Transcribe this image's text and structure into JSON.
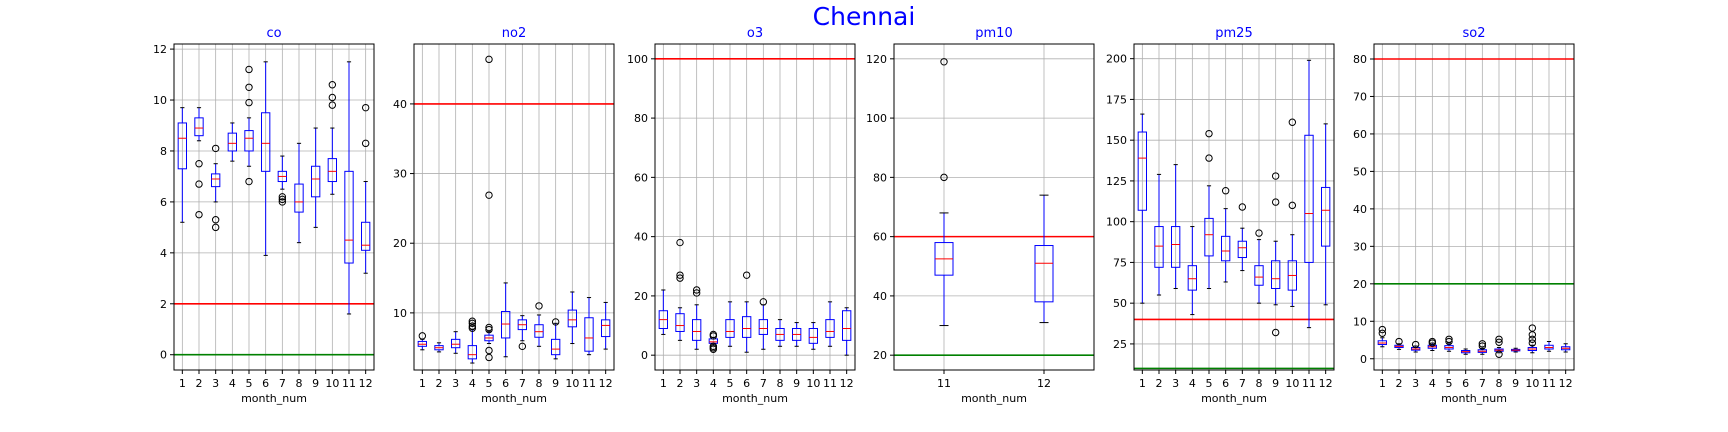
{
  "figure": {
    "title": "Chennai"
  },
  "chart_data": [
    {
      "type": "box",
      "title": "co",
      "xlabel": "month_num",
      "categories": [
        "1",
        "2",
        "3",
        "4",
        "5",
        "6",
        "7",
        "8",
        "9",
        "10",
        "11",
        "12"
      ],
      "ylim": [
        -0.6,
        12.2
      ],
      "yticks": [
        0,
        2,
        4,
        6,
        8,
        10,
        12
      ],
      "grid": true,
      "hlines": [
        {
          "y": 2,
          "color": "#ff0000"
        },
        {
          "y": 0,
          "color": "#008000"
        }
      ],
      "boxes": [
        {
          "whislo": 5.2,
          "q1": 7.3,
          "med": 8.5,
          "q3": 9.1,
          "whishi": 9.7,
          "fliers": []
        },
        {
          "whislo": 8.4,
          "q1": 8.6,
          "med": 8.9,
          "q3": 9.3,
          "whishi": 9.7,
          "fliers": [
            7.5,
            6.7,
            5.5
          ]
        },
        {
          "whislo": 6.0,
          "q1": 6.6,
          "med": 6.9,
          "q3": 7.1,
          "whishi": 7.5,
          "fliers": [
            8.1,
            5.3,
            5.0
          ]
        },
        {
          "whislo": 7.6,
          "q1": 8.0,
          "med": 8.3,
          "q3": 8.7,
          "whishi": 9.1,
          "fliers": []
        },
        {
          "whislo": 7.4,
          "q1": 8.0,
          "med": 8.5,
          "q3": 8.8,
          "whishi": 9.3,
          "fliers": [
            11.2,
            10.5,
            9.9,
            6.8
          ]
        },
        {
          "whislo": 3.9,
          "q1": 7.2,
          "med": 8.3,
          "q3": 9.5,
          "whishi": 11.5,
          "fliers": []
        },
        {
          "whislo": 6.5,
          "q1": 6.8,
          "med": 7.0,
          "q3": 7.2,
          "whishi": 7.8,
          "fliers": [
            6.2,
            6.1,
            6.0
          ]
        },
        {
          "whislo": 4.4,
          "q1": 5.6,
          "med": 6.0,
          "q3": 6.7,
          "whishi": 8.3,
          "fliers": []
        },
        {
          "whislo": 5.0,
          "q1": 6.2,
          "med": 6.9,
          "q3": 7.4,
          "whishi": 8.9,
          "fliers": []
        },
        {
          "whislo": 6.3,
          "q1": 6.8,
          "med": 7.2,
          "q3": 7.7,
          "whishi": 8.9,
          "fliers": [
            10.6,
            10.1,
            9.8
          ]
        },
        {
          "whislo": 1.6,
          "q1": 3.6,
          "med": 4.5,
          "q3": 7.2,
          "whishi": 11.5,
          "fliers": []
        },
        {
          "whislo": 3.2,
          "q1": 4.1,
          "med": 4.3,
          "q3": 5.2,
          "whishi": 6.8,
          "fliers": [
            9.7,
            8.3
          ]
        }
      ]
    },
    {
      "type": "box",
      "title": "no2",
      "xlabel": "month_num",
      "categories": [
        "1",
        "2",
        "3",
        "4",
        "5",
        "6",
        "7",
        "8",
        "9",
        "10",
        "11",
        "12"
      ],
      "ylim": [
        1.8,
        48.6
      ],
      "yticks": [
        10,
        20,
        30,
        40
      ],
      "grid": true,
      "hlines": [
        {
          "y": 40,
          "color": "#ff0000"
        }
      ],
      "boxes": [
        {
          "whislo": 4.7,
          "q1": 5.2,
          "med": 5.5,
          "q3": 5.9,
          "whishi": 6.2,
          "fliers": [
            6.7
          ]
        },
        {
          "whislo": 4.4,
          "q1": 4.7,
          "med": 5.0,
          "q3": 5.3,
          "whishi": 5.7,
          "fliers": []
        },
        {
          "whislo": 4.2,
          "q1": 5.0,
          "med": 5.5,
          "q3": 6.2,
          "whishi": 7.3,
          "fliers": []
        },
        {
          "whislo": 2.8,
          "q1": 3.4,
          "med": 4.0,
          "q3": 5.3,
          "whishi": 7.6,
          "fliers": [
            8.1,
            8.5,
            8.8,
            7.8
          ]
        },
        {
          "whislo": 5.6,
          "q1": 6.0,
          "med": 6.4,
          "q3": 6.8,
          "whishi": 7.3,
          "fliers": [
            46.4,
            26.9,
            7.9,
            7.6,
            4.6,
            3.6
          ]
        },
        {
          "whislo": 3.7,
          "q1": 6.4,
          "med": 8.4,
          "q3": 10.2,
          "whishi": 14.3,
          "fliers": []
        },
        {
          "whislo": 6.0,
          "q1": 7.6,
          "med": 8.3,
          "q3": 9.0,
          "whishi": 9.6,
          "fliers": [
            5.2
          ]
        },
        {
          "whislo": 5.2,
          "q1": 6.5,
          "med": 7.3,
          "q3": 8.3,
          "whishi": 9.7,
          "fliers": [
            11.0
          ]
        },
        {
          "whislo": 3.4,
          "q1": 4.0,
          "med": 4.8,
          "q3": 6.2,
          "whishi": 8.5,
          "fliers": [
            8.7
          ]
        },
        {
          "whislo": 5.6,
          "q1": 8.0,
          "med": 9.0,
          "q3": 10.4,
          "whishi": 13.0,
          "fliers": []
        },
        {
          "whislo": 4.0,
          "q1": 4.5,
          "med": 6.4,
          "q3": 9.3,
          "whishi": 12.2,
          "fliers": []
        },
        {
          "whislo": 4.8,
          "q1": 6.6,
          "med": 8.2,
          "q3": 9.0,
          "whishi": 11.5,
          "fliers": []
        }
      ]
    },
    {
      "type": "box",
      "title": "o3",
      "xlabel": "month_num",
      "categories": [
        "1",
        "2",
        "3",
        "4",
        "5",
        "6",
        "7",
        "8",
        "9",
        "10",
        "11",
        "12"
      ],
      "ylim": [
        -5,
        105
      ],
      "yticks": [
        0,
        20,
        40,
        60,
        80,
        100
      ],
      "grid": true,
      "hlines": [
        {
          "y": 100,
          "color": "#ff0000"
        }
      ],
      "boxes": [
        {
          "whislo": 7.0,
          "q1": 9.0,
          "med": 12.0,
          "q3": 15.0,
          "whishi": 22.0,
          "fliers": []
        },
        {
          "whislo": 5.0,
          "q1": 8.0,
          "med": 10.0,
          "q3": 14.0,
          "whishi": 16.0,
          "fliers": [
            38.0,
            27.0,
            26.0
          ]
        },
        {
          "whislo": 2.0,
          "q1": 5.0,
          "med": 8.0,
          "q3": 12.0,
          "whishi": 17.0,
          "fliers": [
            22.0,
            21.0
          ]
        },
        {
          "whislo": 3.5,
          "q1": 4.0,
          "med": 4.5,
          "q3": 5.5,
          "whishi": 6.0,
          "fliers": [
            7.0,
            6.5,
            3.0,
            2.5,
            2.0
          ]
        },
        {
          "whislo": 3.0,
          "q1": 6.0,
          "med": 8.0,
          "q3": 12.0,
          "whishi": 18.0,
          "fliers": []
        },
        {
          "whislo": 1.0,
          "q1": 6.0,
          "med": 9.0,
          "q3": 13.0,
          "whishi": 18.0,
          "fliers": [
            27.0
          ]
        },
        {
          "whislo": 2.0,
          "q1": 7.0,
          "med": 9.0,
          "q3": 12.0,
          "whishi": 17.0,
          "fliers": [
            18.0
          ]
        },
        {
          "whislo": 3.0,
          "q1": 5.0,
          "med": 7.0,
          "q3": 9.0,
          "whishi": 12.0,
          "fliers": []
        },
        {
          "whislo": 3.0,
          "q1": 5.0,
          "med": 7.0,
          "q3": 9.0,
          "whishi": 11.0,
          "fliers": []
        },
        {
          "whislo": 2.0,
          "q1": 4.0,
          "med": 6.0,
          "q3": 9.0,
          "whishi": 11.0,
          "fliers": []
        },
        {
          "whislo": 3.0,
          "q1": 6.0,
          "med": 8.0,
          "q3": 12.0,
          "whishi": 18.0,
          "fliers": []
        },
        {
          "whislo": 0.0,
          "q1": 5.0,
          "med": 9.0,
          "q3": 15.0,
          "whishi": 16.0,
          "fliers": []
        }
      ]
    },
    {
      "type": "box",
      "title": "pm10",
      "xlabel": "month_num",
      "categories": [
        "11",
        "12"
      ],
      "ylim": [
        15,
        125
      ],
      "yticks": [
        20,
        40,
        60,
        80,
        100,
        120
      ],
      "grid": true,
      "hlines": [
        {
          "y": 60,
          "color": "#ff0000"
        },
        {
          "y": 20,
          "color": "#008000"
        }
      ],
      "boxes": [
        {
          "whislo": 30.0,
          "q1": 47.0,
          "med": 52.5,
          "q3": 58.0,
          "whishi": 68.0,
          "fliers": [
            119.0,
            80.0
          ]
        },
        {
          "whislo": 31.0,
          "q1": 38.0,
          "med": 51.0,
          "q3": 57.0,
          "whishi": 74.0,
          "fliers": []
        }
      ]
    },
    {
      "type": "box",
      "title": "pm25",
      "xlabel": "month_num",
      "categories": [
        "1",
        "2",
        "3",
        "4",
        "5",
        "6",
        "7",
        "8",
        "9",
        "10",
        "11",
        "12"
      ],
      "ylim": [
        9,
        209
      ],
      "yticks": [
        25,
        50,
        75,
        100,
        125,
        150,
        175,
        200
      ],
      "grid": true,
      "hlines": [
        {
          "y": 40,
          "color": "#ff0000"
        },
        {
          "y": 10,
          "color": "#008000"
        }
      ],
      "boxes": [
        {
          "whislo": 50.0,
          "q1": 107.0,
          "med": 139.0,
          "q3": 155.0,
          "whishi": 166.0,
          "fliers": []
        },
        {
          "whislo": 55.0,
          "q1": 72.0,
          "med": 85.0,
          "q3": 97.0,
          "whishi": 129.0,
          "fliers": []
        },
        {
          "whislo": 59.0,
          "q1": 72.0,
          "med": 86.0,
          "q3": 97.0,
          "whishi": 135.0,
          "fliers": []
        },
        {
          "whislo": 43.0,
          "q1": 58.0,
          "med": 65.0,
          "q3": 73.0,
          "whishi": 97.0,
          "fliers": []
        },
        {
          "whislo": 59.0,
          "q1": 79.0,
          "med": 92.0,
          "q3": 102.0,
          "whishi": 122.0,
          "fliers": [
            154.0,
            139.0
          ]
        },
        {
          "whislo": 63.0,
          "q1": 76.0,
          "med": 82.0,
          "q3": 91.0,
          "whishi": 108.0,
          "fliers": [
            119.0
          ]
        },
        {
          "whislo": 70.0,
          "q1": 78.0,
          "med": 84.0,
          "q3": 88.0,
          "whishi": 96.0,
          "fliers": [
            109.0
          ]
        },
        {
          "whislo": 50.0,
          "q1": 61.0,
          "med": 66.0,
          "q3": 73.0,
          "whishi": 89.0,
          "fliers": [
            93.0
          ]
        },
        {
          "whislo": 49.0,
          "q1": 59.0,
          "med": 65.0,
          "q3": 76.0,
          "whishi": 88.0,
          "fliers": [
            128.0,
            112.0,
            32.0
          ]
        },
        {
          "whislo": 48.0,
          "q1": 58.0,
          "med": 67.0,
          "q3": 76.0,
          "whishi": 92.0,
          "fliers": [
            161.0,
            110.0
          ]
        },
        {
          "whislo": 35.0,
          "q1": 75.0,
          "med": 105.0,
          "q3": 153.0,
          "whishi": 199.0,
          "fliers": []
        },
        {
          "whislo": 49.0,
          "q1": 85.0,
          "med": 107.0,
          "q3": 121.0,
          "whishi": 160.0,
          "fliers": []
        }
      ]
    },
    {
      "type": "box",
      "title": "so2",
      "xlabel": "month_num",
      "categories": [
        "1",
        "2",
        "3",
        "4",
        "5",
        "6",
        "7",
        "8",
        "9",
        "10",
        "11",
        "12"
      ],
      "ylim": [
        -3,
        84
      ],
      "yticks": [
        0,
        10,
        20,
        30,
        40,
        50,
        60,
        70,
        80
      ],
      "grid": true,
      "hlines": [
        {
          "y": 80,
          "color": "#ff0000"
        },
        {
          "y": 20,
          "color": "#008000"
        }
      ],
      "boxes": [
        {
          "whislo": 3.2,
          "q1": 3.8,
          "med": 4.2,
          "q3": 4.8,
          "whishi": 5.6,
          "fliers": [
            7.8,
            6.8
          ]
        },
        {
          "whislo": 2.5,
          "q1": 3.0,
          "med": 3.3,
          "q3": 3.6,
          "whishi": 4.0,
          "fliers": [
            4.6
          ]
        },
        {
          "whislo": 1.8,
          "q1": 2.3,
          "med": 2.6,
          "q3": 3.0,
          "whishi": 3.4,
          "fliers": [
            3.8
          ]
        },
        {
          "whislo": 2.2,
          "q1": 2.8,
          "med": 3.2,
          "q3": 3.6,
          "whishi": 4.2,
          "fliers": [
            4.6,
            4.2
          ]
        },
        {
          "whislo": 2.0,
          "q1": 2.6,
          "med": 3.0,
          "q3": 3.5,
          "whishi": 4.2,
          "fliers": [
            5.2,
            4.6
          ]
        },
        {
          "whislo": 1.2,
          "q1": 1.6,
          "med": 1.9,
          "q3": 2.2,
          "whishi": 2.6,
          "fliers": []
        },
        {
          "whislo": 1.2,
          "q1": 1.7,
          "med": 2.0,
          "q3": 2.4,
          "whishi": 2.8,
          "fliers": [
            4.0,
            3.4
          ]
        },
        {
          "whislo": 1.6,
          "q1": 2.0,
          "med": 2.3,
          "q3": 2.6,
          "whishi": 3.0,
          "fliers": [
            5.2,
            4.4,
            1.2
          ]
        },
        {
          "whislo": 1.8,
          "q1": 2.1,
          "med": 2.3,
          "q3": 2.5,
          "whishi": 2.8,
          "fliers": []
        },
        {
          "whislo": 1.6,
          "q1": 2.2,
          "med": 2.6,
          "q3": 3.0,
          "whishi": 3.6,
          "fliers": [
            8.2,
            6.4,
            5.2,
            4.2
          ]
        },
        {
          "whislo": 2.0,
          "q1": 2.6,
          "med": 3.0,
          "q3": 3.6,
          "whishi": 4.6,
          "fliers": []
        },
        {
          "whislo": 1.8,
          "q1": 2.4,
          "med": 2.8,
          "q3": 3.2,
          "whishi": 4.0,
          "fliers": []
        }
      ]
    }
  ]
}
